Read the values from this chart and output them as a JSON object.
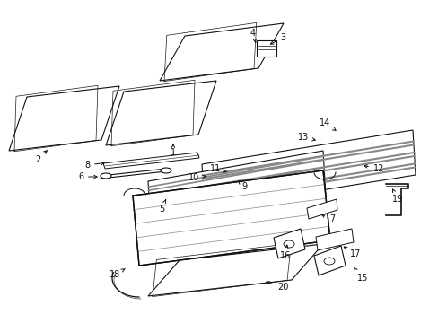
{
  "bg": "#ffffff",
  "lc": "#111111",
  "gray": "#888888",
  "lgray": "#cccccc",
  "callouts": {
    "1": [
      193,
      163,
      193,
      152
    ],
    "2": [
      48,
      175,
      60,
      163
    ],
    "3": [
      310,
      45,
      305,
      52
    ],
    "4": [
      287,
      40,
      287,
      50
    ],
    "5": [
      185,
      228,
      185,
      218
    ],
    "6": [
      95,
      196,
      108,
      196
    ],
    "7": [
      366,
      242,
      358,
      238
    ],
    "8": [
      102,
      183,
      115,
      181
    ],
    "9": [
      277,
      206,
      268,
      201
    ],
    "10": [
      221,
      197,
      234,
      196
    ],
    "11": [
      244,
      188,
      256,
      192
    ],
    "12": [
      418,
      187,
      400,
      185
    ],
    "13": [
      342,
      152,
      356,
      156
    ],
    "14": [
      366,
      138,
      378,
      146
    ],
    "15": [
      400,
      308,
      393,
      298
    ],
    "16": [
      322,
      283,
      318,
      272
    ],
    "17": [
      392,
      280,
      382,
      272
    ],
    "18": [
      133,
      305,
      143,
      299
    ],
    "19": [
      440,
      220,
      436,
      212
    ],
    "20": [
      313,
      318,
      295,
      312
    ]
  }
}
